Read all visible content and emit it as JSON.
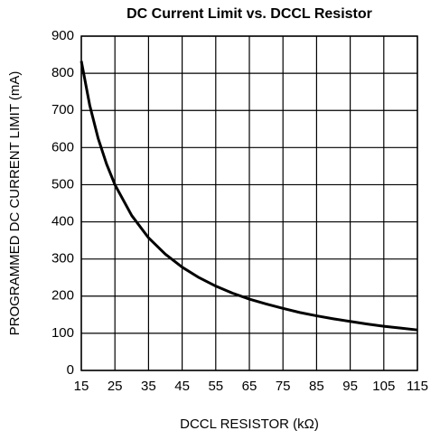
{
  "chart_data": {
    "type": "line",
    "title": "DC Current Limit vs. DCCL Resistor",
    "x_label": "DCCL RESISTOR (kΩ)",
    "y_label": "PROGRAMMED DC CURRENT LIMIT (mA)",
    "x": [
      15,
      17.5,
      20,
      22.5,
      25,
      30,
      35,
      40,
      45,
      50,
      55,
      60,
      65,
      70,
      75,
      80,
      85,
      90,
      95,
      100,
      105,
      110,
      115
    ],
    "series": [
      {
        "color": "#000000",
        "values": [
          833,
          714,
          625,
          556,
          500,
          417,
          357,
          313,
          278,
          250,
          227,
          208,
          192,
          179,
          167,
          156,
          147,
          139,
          132,
          125,
          119,
          114,
          109
        ]
      }
    ],
    "xlim": [
      15,
      115
    ],
    "xticks": [
      15,
      25,
      35,
      45,
      55,
      65,
      75,
      85,
      95,
      105,
      115
    ],
    "ylim": [
      0,
      900
    ],
    "yticks": [
      0,
      100,
      200,
      300,
      400,
      500,
      600,
      700,
      800,
      900
    ],
    "grid": true
  }
}
